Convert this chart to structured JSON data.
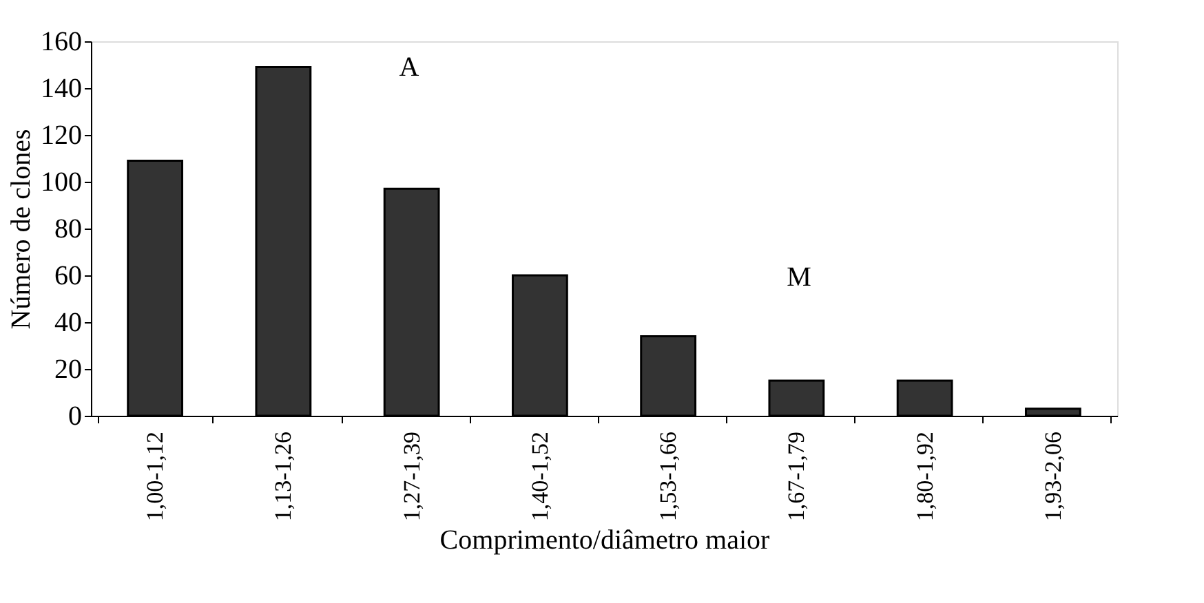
{
  "chart_data": {
    "type": "bar",
    "xlabel": "Comprimento/diâmetro maior",
    "ylabel": "Número de clones",
    "categories": [
      "1,00-1,12",
      "1,13-1,26",
      "1,27-1,39",
      "1,40-1,52",
      "1,53-1,66",
      "1,67-1,79",
      "1,80-1,92",
      "1,93-2,06"
    ],
    "values": [
      109,
      149,
      97,
      60,
      34,
      15,
      15,
      3
    ],
    "color": "#333333",
    "ylim": [
      0,
      160
    ],
    "yticks": [
      0,
      20,
      40,
      60,
      80,
      100,
      120,
      140,
      160
    ],
    "grid": false,
    "annotations": [
      "A",
      "M"
    ]
  }
}
